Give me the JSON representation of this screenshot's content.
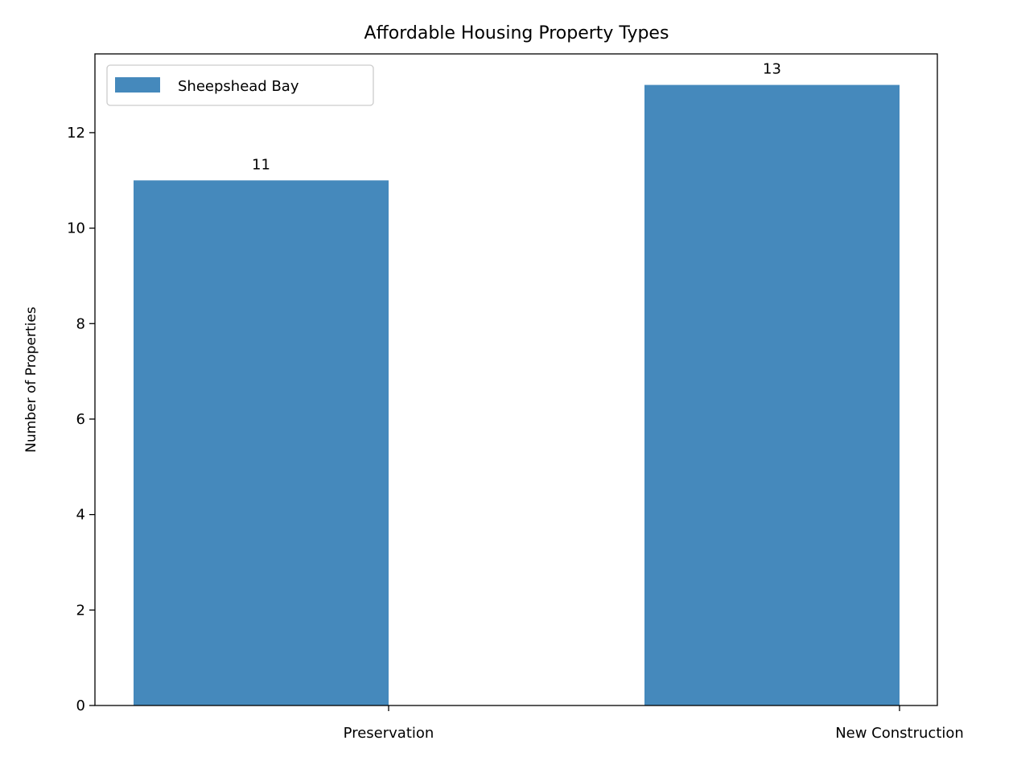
{
  "chart_data": {
    "type": "bar",
    "title": "Affordable Housing Property Types",
    "xlabel": "",
    "ylabel": "Number of Properties",
    "categories": [
      "Preservation",
      "New Construction"
    ],
    "series": [
      {
        "name": "Sheepshead Bay",
        "values": [
          11,
          13
        ],
        "color": "#4589bc"
      }
    ],
    "ylim": [
      0,
      13.65
    ],
    "yticks": [
      0,
      2,
      4,
      6,
      8,
      10,
      12
    ],
    "grid": false,
    "legend_position": "top-left",
    "data_labels": [
      "11",
      "13"
    ]
  }
}
